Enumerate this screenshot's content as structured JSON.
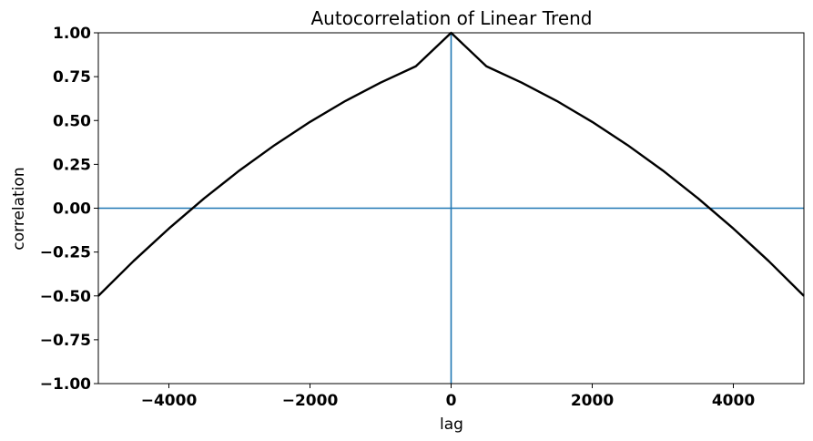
{
  "chart_data": {
    "type": "line",
    "title": "Autocorrelation of Linear Trend",
    "xlabel": "lag",
    "ylabel": "correlation",
    "xlim": [
      -5000,
      5000
    ],
    "ylim": [
      -1.0,
      1.0
    ],
    "x_ticks": [
      -4000,
      -2000,
      0,
      2000,
      4000
    ],
    "x_tick_labels": [
      "−4000",
      "−2000",
      "0",
      "2000",
      "4000"
    ],
    "y_ticks": [
      1.0,
      0.75,
      0.5,
      0.25,
      0.0,
      -0.25,
      -0.5,
      -0.75,
      -1.0
    ],
    "y_tick_labels": [
      "1.00",
      "0.75",
      "0.50",
      "0.25",
      "0.00",
      "−0.25",
      "−0.50",
      "−0.75",
      "−1.00"
    ],
    "grid": false,
    "series": [
      {
        "color": "#000000",
        "x": [
          -5000,
          -4500,
          -4000,
          -3500,
          -3000,
          -2500,
          -2000,
          -1500,
          -1000,
          -500,
          0,
          500,
          1000,
          1500,
          2000,
          2500,
          3000,
          3500,
          4000,
          4500,
          5000
        ],
        "y": [
          -0.5,
          -0.301,
          -0.116,
          0.056,
          0.215,
          0.36,
          0.492,
          0.611,
          0.716,
          0.809,
          1.0,
          0.809,
          0.716,
          0.611,
          0.492,
          0.36,
          0.215,
          0.056,
          -0.116,
          -0.301,
          -0.5
        ]
      }
    ],
    "reference_lines": [
      {
        "orientation": "horizontal",
        "value": 0.0,
        "color": "#1f77b4"
      },
      {
        "orientation": "vertical",
        "value": 0,
        "color": "#1f77b4"
      }
    ]
  }
}
